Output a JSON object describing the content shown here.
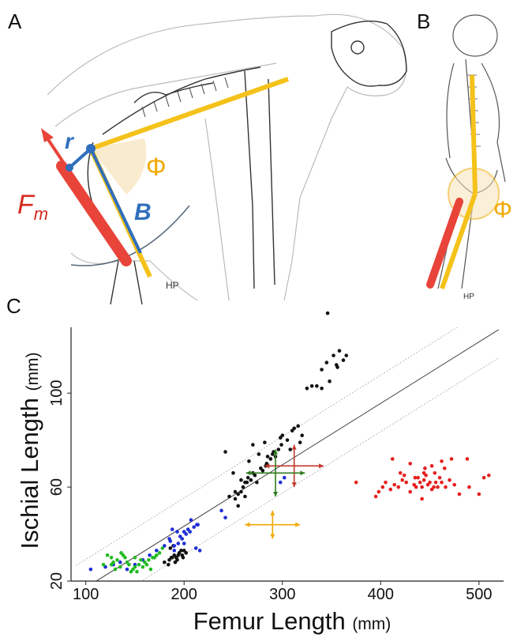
{
  "panels": {
    "a": "A",
    "b": "B",
    "c": "C"
  },
  "illustration": {
    "force_label": "F",
    "force_sub": "m",
    "lever_r": "r",
    "lever_b": "B",
    "angle": "Φ",
    "angle_b": "Φ",
    "signature_a": "HP",
    "signature_b": "HP"
  },
  "chart_data": {
    "type": "scatter",
    "xlabel": "Femur Length",
    "xlabel_unit": "(mm)",
    "ylabel": "Ischial Length",
    "ylabel_unit": "(mm)",
    "xlim": [
      85,
      525
    ],
    "ylim": [
      20,
      128
    ],
    "xticks": [
      100,
      200,
      300,
      400,
      500
    ],
    "yticks": [
      20,
      60,
      100
    ],
    "fit_line": {
      "x": [
        90,
        520
      ],
      "y": [
        14.6,
        127.0
      ]
    },
    "band_offset": 12,
    "colors": {
      "black": "#111111",
      "blue": "#1f2fd6",
      "green": "#22bb22",
      "red": "#e61e1e",
      "err_red": "#c0392b",
      "err_green": "#2e7d1f",
      "err_yellow": "#f2a900"
    },
    "series": [
      {
        "color": "black",
        "x": [
          180,
          185,
          188,
          190,
          192,
          195,
          198,
          200,
          184,
          193,
          197,
          186,
          202,
          189,
          194,
          187,
          191,
          199,
          252,
          255,
          258,
          260,
          262,
          265,
          268,
          270,
          255,
          262,
          272,
          278,
          280,
          284,
          288,
          290,
          293,
          296,
          250,
          258,
          266,
          274,
          283,
          291,
          299,
          305,
          300,
          310,
          312,
          316,
          320,
          308,
          285,
          276,
          264,
          252,
          246,
          242,
          270,
          282,
          298,
          318,
          325,
          330,
          335,
          340,
          345,
          348,
          352,
          355,
          358,
          362,
          365,
          346,
          356,
          340
        ],
        "y": [
          28,
          29,
          30,
          31,
          30,
          32,
          31,
          33,
          27,
          29,
          33,
          34,
          32,
          35,
          31,
          30,
          28,
          30,
          55,
          57,
          58,
          60,
          62,
          64,
          63,
          66,
          52,
          56,
          65,
          68,
          67,
          70,
          72,
          74,
          73,
          76,
          66,
          63,
          71,
          62,
          69,
          75,
          78,
          80,
          82,
          84,
          85,
          86,
          82,
          76,
          73,
          74,
          62,
          58,
          56,
          75,
          78,
          79,
          81,
          79,
          102,
          103,
          103,
          110,
          113,
          105,
          116,
          112,
          118,
          114,
          116,
          134,
          111,
          102
        ]
      },
      {
        "color": "blue",
        "x": [
          105,
          120,
          128,
          135,
          142,
          150,
          158,
          165,
          172,
          180,
          186,
          190,
          194,
          198,
          202,
          206,
          210,
          214,
          190,
          196,
          200,
          204,
          212,
          216,
          185,
          193,
          200,
          238,
          242,
          298,
          302,
          188,
          207,
          213
        ],
        "y": [
          25,
          26,
          27,
          28,
          25,
          27,
          29,
          31,
          33,
          35,
          37,
          35,
          36,
          38,
          40,
          41,
          43,
          44,
          33,
          39,
          41,
          42,
          34,
          33,
          38,
          41,
          36,
          50,
          47,
          62,
          64,
          42,
          46,
          44
        ]
      },
      {
        "color": "green",
        "x": [
          118,
          122,
          126,
          128,
          132,
          135,
          138,
          140,
          144,
          148,
          150,
          154,
          156,
          160,
          164,
          168,
          172,
          175,
          178,
          130,
          142,
          152,
          162,
          170,
          136,
          146,
          158,
          166,
          126,
          150
        ],
        "y": [
          27,
          31,
          30,
          28,
          29,
          26,
          31,
          30,
          27,
          25,
          30,
          27,
          29,
          28,
          29,
          30,
          31,
          32,
          34,
          25,
          28,
          24,
          27,
          30,
          32,
          24,
          26,
          25,
          27,
          26
        ]
      },
      {
        "color": "red",
        "x": [
          375,
          398,
          402,
          410,
          414,
          418,
          422,
          426,
          430,
          434,
          438,
          440,
          442,
          444,
          446,
          448,
          450,
          452,
          454,
          456,
          458,
          460,
          462,
          466,
          470,
          475,
          480,
          490,
          500,
          510,
          395,
          405,
          420,
          435,
          445,
          455,
          465,
          488,
          505,
          430,
          444,
          452,
          462,
          472,
          442,
          412,
          424,
          436
        ],
        "y": [
          62,
          58,
          60,
          59,
          61,
          60,
          63,
          62,
          58,
          61,
          64,
          62,
          60,
          63,
          65,
          61,
          62,
          59,
          60,
          62,
          60,
          64,
          62,
          60,
          63,
          61,
          57,
          60,
          57,
          65,
          56,
          62,
          66,
          64,
          68,
          66,
          68,
          72,
          64,
          70,
          66,
          69,
          71,
          72,
          55,
          72,
          65,
          60
        ]
      }
    ],
    "error_bars": [
      {
        "color": "err_red",
        "x": 312,
        "y": 69,
        "xerr": 30,
        "yerr": 9
      },
      {
        "color": "err_green",
        "x": 293,
        "y": 66,
        "xerr": 30,
        "yerr": 10
      },
      {
        "color": "err_yellow",
        "x": 290,
        "y": 44,
        "xerr": 28,
        "yerr": 6
      }
    ]
  }
}
